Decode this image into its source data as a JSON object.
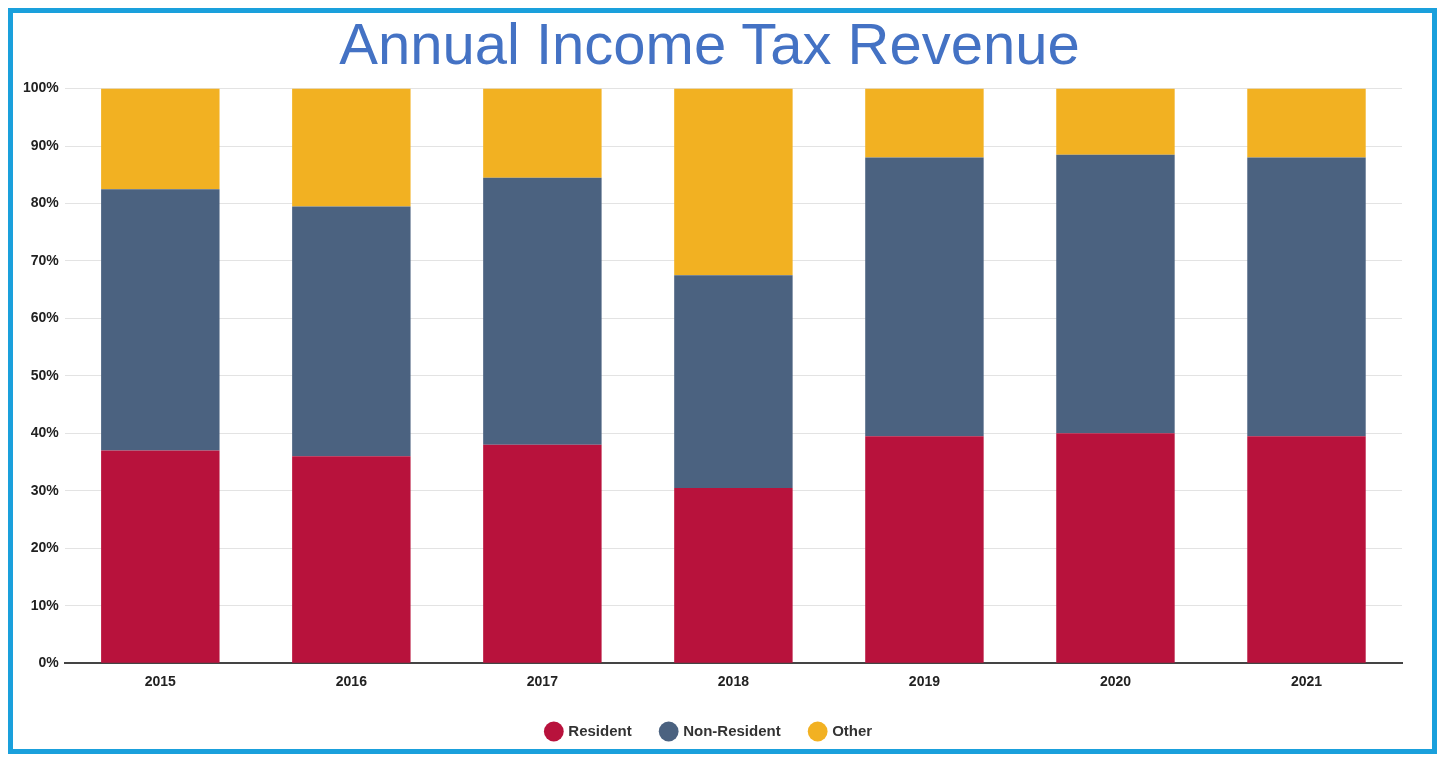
{
  "chart_data": {
    "type": "bar",
    "title": "Annual Income Tax Revenue",
    "stacked": true,
    "categories": [
      "2015",
      "2016",
      "2017",
      "2018",
      "2019",
      "2020",
      "2021"
    ],
    "series": [
      {
        "name": "Resident",
        "color": "#b8123c",
        "values": [
          37,
          36,
          38,
          30.5,
          39.5,
          40,
          39.5
        ]
      },
      {
        "name": "Non-Resident",
        "color": "#4b6280",
        "values": [
          45.5,
          43.5,
          46.5,
          37,
          48.5,
          48.5,
          48.5
        ]
      },
      {
        "name": "Other",
        "color": "#f2b122",
        "values": [
          17.5,
          20.5,
          15.5,
          32.5,
          12,
          11.5,
          12
        ]
      }
    ],
    "ylim": [
      0,
      100
    ],
    "yticks": [
      {
        "value": 0,
        "label": "0%"
      },
      {
        "value": 10,
        "label": "10%"
      },
      {
        "value": 20,
        "label": "20%"
      },
      {
        "value": 30,
        "label": "30%"
      },
      {
        "value": 40,
        "label": "40%"
      },
      {
        "value": 50,
        "label": "50%"
      },
      {
        "value": 60,
        "label": "60%"
      },
      {
        "value": 70,
        "label": "70%"
      },
      {
        "value": 80,
        "label": "80%"
      },
      {
        "value": 90,
        "label": "90%"
      },
      {
        "value": 100,
        "label": "100%"
      }
    ],
    "grid": "y",
    "legend": "bottom",
    "marker": "circle"
  }
}
